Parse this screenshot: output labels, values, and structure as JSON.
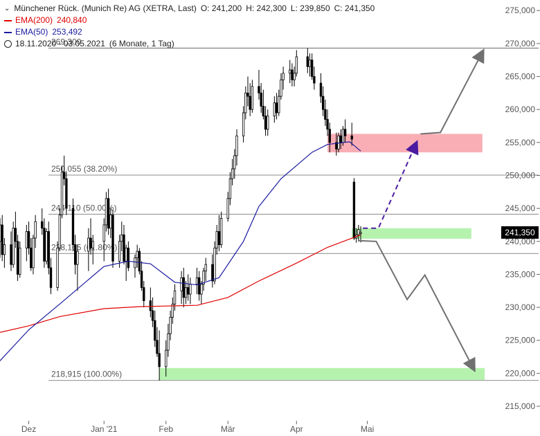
{
  "header": {
    "title_line": "Münchener Rück. (Munich Re) AG (XETRA, Last)",
    "o": "O: 241,200",
    "h": "H: 242,300",
    "l": "L: 239,850",
    "c": "C: 241,350",
    "ema200_label": "EMA(200)",
    "ema200_value": "240,840",
    "ema50_label": "EMA(50)",
    "ema50_value": "253,492",
    "period": "18.11.2020 - 03.05.2021",
    "period_note": "(6 Monate, 1 Tag)"
  },
  "colors": {
    "ema200": "#e00000",
    "ema50": "#1a1aa0",
    "resistance_zone": "#f8a0a8",
    "support_zone": "#a8f0a0",
    "dashed_path": "#4a1aa0",
    "scenario_path": "#707070",
    "price_tag_bg": "#000000"
  },
  "chart_data": {
    "type": "candlestick",
    "x_axis": {
      "ticks": [
        "Dez",
        "Jan '21",
        "Feb",
        "Mär",
        "Apr",
        "Mai"
      ],
      "tick_dates": [
        "2020-12-01",
        "2021-01-04",
        "2021-02-01",
        "2021-03-01",
        "2021-04-01",
        "2021-05-03"
      ],
      "range": [
        "2020-11-18",
        "2021-06-25"
      ]
    },
    "y_axis": {
      "ticks": [
        215000,
        220000,
        225000,
        230000,
        235000,
        240000,
        245000,
        250000,
        255000,
        260000,
        265000,
        270000,
        275000
      ],
      "tick_labels": [
        "215,000",
        "220,000",
        "225,000",
        "230,000",
        "235,000",
        "240,000",
        "245,000",
        "250,000",
        "255,000",
        "260,000",
        "265,000",
        "270,000",
        "275,000"
      ],
      "range": [
        212800,
        276600
      ],
      "position": "right"
    },
    "last_price": 241350,
    "last_price_label": "241,350",
    "fib_levels": [
      {
        "value": 269300,
        "label": "269,300"
      },
      {
        "value": 250055,
        "label": "250,055 (38.20%)"
      },
      {
        "value": 244110,
        "label": "244,110 (50.00%)"
      },
      {
        "value": 238165,
        "label": "238,165 (61.80%)"
      },
      {
        "value": 218915,
        "label": "218,915 (100.00%)"
      }
    ],
    "zones": [
      {
        "name": "resistance",
        "from": 253500,
        "to": 256300,
        "start": "2021-04-15",
        "end": "2021-06-24"
      },
      {
        "name": "support",
        "from": 240400,
        "to": 242000,
        "start": "2021-04-26",
        "end": "2021-06-19"
      },
      {
        "name": "target",
        "from": 219000,
        "to": 220800,
        "start": "2021-01-29",
        "end": "2021-06-25"
      }
    ],
    "series": [
      {
        "name": "EMA(200)",
        "points": [
          [
            "2020-11-18",
            226200
          ],
          [
            "2020-12-01",
            227200
          ],
          [
            "2020-12-15",
            228600
          ],
          [
            "2021-01-04",
            229800
          ],
          [
            "2021-01-20",
            230100
          ],
          [
            "2021-02-01",
            230200
          ],
          [
            "2021-02-15",
            230300
          ],
          [
            "2021-03-01",
            231500
          ],
          [
            "2021-03-15",
            234000
          ],
          [
            "2021-04-01",
            236700
          ],
          [
            "2021-04-15",
            239100
          ],
          [
            "2021-04-30",
            241000
          ]
        ]
      },
      {
        "name": "EMA(50)",
        "points": [
          [
            "2020-11-18",
            221900
          ],
          [
            "2020-12-01",
            226600
          ],
          [
            "2020-12-15",
            230500
          ],
          [
            "2021-01-04",
            236200
          ],
          [
            "2021-01-15",
            237000
          ],
          [
            "2021-01-25",
            236600
          ],
          [
            "2021-02-05",
            233800
          ],
          [
            "2021-02-15",
            233400
          ],
          [
            "2021-02-25",
            234500
          ],
          [
            "2021-03-08",
            240000
          ],
          [
            "2021-03-15",
            245300
          ],
          [
            "2021-03-25",
            249500
          ],
          [
            "2021-04-08",
            253500
          ],
          [
            "2021-04-15",
            254700
          ],
          [
            "2021-04-25",
            255100
          ],
          [
            "2021-04-30",
            253700
          ]
        ]
      }
    ],
    "ohlc": [
      [
        "2020-11-18",
        240000,
        243500,
        237500,
        242500
      ],
      [
        "2020-11-19",
        242500,
        244000,
        237000,
        238000
      ],
      [
        "2020-11-20",
        238000,
        240500,
        236000,
        239500
      ],
      [
        "2020-11-23",
        239500,
        241500,
        235500,
        236500
      ],
      [
        "2020-11-24",
        236500,
        243000,
        236000,
        242000
      ],
      [
        "2020-11-25",
        242000,
        244500,
        239000,
        240000
      ],
      [
        "2020-11-26",
        240000,
        241000,
        234000,
        235000
      ],
      [
        "2020-11-27",
        235000,
        240000,
        234500,
        239000
      ],
      [
        "2020-11-30",
        239000,
        242500,
        237000,
        241500
      ],
      [
        "2020-12-01",
        241500,
        243000,
        238000,
        239000
      ],
      [
        "2020-12-02",
        239000,
        240500,
        235500,
        236000
      ],
      [
        "2020-12-03",
        236000,
        241000,
        235000,
        240500
      ],
      [
        "2020-12-04",
        240500,
        244000,
        239000,
        243000
      ],
      [
        "2020-12-07",
        243000,
        245000,
        241000,
        242000
      ],
      [
        "2020-12-08",
        242000,
        243500,
        236000,
        237000
      ],
      [
        "2020-12-09",
        237000,
        242000,
        236500,
        241500
      ],
      [
        "2020-12-10",
        241500,
        243000,
        235000,
        236000
      ],
      [
        "2020-12-11",
        236000,
        237500,
        232000,
        233000
      ],
      [
        "2020-12-14",
        233000,
        240000,
        232500,
        239000
      ],
      [
        "2020-12-15",
        239000,
        245000,
        238500,
        244000
      ],
      [
        "2020-12-16",
        244000,
        251500,
        243500,
        250500
      ],
      [
        "2020-12-17",
        250500,
        253000,
        248500,
        249500
      ],
      [
        "2020-12-18",
        249500,
        250500,
        244000,
        245000
      ],
      [
        "2020-12-21",
        245000,
        246500,
        238500,
        239500
      ],
      [
        "2020-12-22",
        239500,
        241000,
        235000,
        236500
      ],
      [
        "2020-12-23",
        236500,
        239500,
        232500,
        238500
      ],
      [
        "2020-12-28",
        238500,
        242000,
        235500,
        240500
      ],
      [
        "2020-12-29",
        240500,
        243500,
        238000,
        239000
      ],
      [
        "2020-12-30",
        239000,
        241000,
        236500,
        240000
      ],
      [
        "2021-01-04",
        240000,
        243500,
        237000,
        242500
      ],
      [
        "2021-01-05",
        242500,
        247500,
        241500,
        246500
      ],
      [
        "2021-01-06",
        246500,
        248000,
        241000,
        242000
      ],
      [
        "2021-01-07",
        242000,
        245000,
        240500,
        244000
      ],
      [
        "2021-01-08",
        244000,
        244800,
        236000,
        237000
      ],
      [
        "2021-01-11",
        237000,
        241000,
        236000,
        240000
      ],
      [
        "2021-01-12",
        240000,
        243000,
        238500,
        241000
      ],
      [
        "2021-01-13",
        241000,
        242500,
        236500,
        237000
      ],
      [
        "2021-01-14",
        237000,
        239500,
        234000,
        239000
      ],
      [
        "2021-01-15",
        239000,
        240000,
        235500,
        236000
      ],
      [
        "2021-01-18",
        236000,
        238000,
        234500,
        237500
      ],
      [
        "2021-01-19",
        237500,
        239500,
        236000,
        238500
      ],
      [
        "2021-01-20",
        238500,
        239000,
        235000,
        235500
      ],
      [
        "2021-01-21",
        235500,
        237000,
        232500,
        233000
      ],
      [
        "2021-01-22",
        233000,
        234000,
        230000,
        231000
      ],
      [
        "2021-01-25",
        231000,
        233000,
        228500,
        229500
      ],
      [
        "2021-01-26",
        229500,
        231500,
        227000,
        228000
      ],
      [
        "2021-01-27",
        228000,
        229500,
        224000,
        225000
      ],
      [
        "2021-01-28",
        225000,
        227000,
        222500,
        223000
      ],
      [
        "2021-01-29",
        223000,
        226500,
        218900,
        221000
      ],
      [
        "2021-02-01",
        221000,
        225000,
        219500,
        223500
      ],
      [
        "2021-02-02",
        223500,
        227500,
        222500,
        226000
      ],
      [
        "2021-02-03",
        226000,
        229500,
        225000,
        228500
      ],
      [
        "2021-02-04",
        228500,
        231500,
        227500,
        230500
      ],
      [
        "2021-02-05",
        230500,
        233500,
        229500,
        232500
      ],
      [
        "2021-02-08",
        232500,
        235500,
        230500,
        234500
      ],
      [
        "2021-02-09",
        234500,
        236000,
        230000,
        231500
      ],
      [
        "2021-02-10",
        231500,
        234000,
        230500,
        233000
      ],
      [
        "2021-02-11",
        233000,
        235000,
        231000,
        232000
      ],
      [
        "2021-02-12",
        232000,
        234500,
        230500,
        233500
      ],
      [
        "2021-02-15",
        233500,
        236000,
        232000,
        234500
      ],
      [
        "2021-02-16",
        234500,
        235500,
        231000,
        232000
      ],
      [
        "2021-02-17",
        232000,
        234000,
        230500,
        233500
      ],
      [
        "2021-02-18",
        233500,
        236000,
        232500,
        235500
      ],
      [
        "2021-02-19",
        235500,
        237500,
        234000,
        236500
      ],
      [
        "2021-02-22",
        236500,
        238000,
        233000,
        234000
      ],
      [
        "2021-02-23",
        234000,
        240000,
        233500,
        239000
      ],
      [
        "2021-02-24",
        239000,
        242500,
        238000,
        241500
      ],
      [
        "2021-02-25",
        241500,
        244000,
        238500,
        239500
      ],
      [
        "2021-02-26",
        239500,
        244500,
        239000,
        243500
      ],
      [
        "2021-03-01",
        243500,
        247500,
        243000,
        246500
      ],
      [
        "2021-03-02",
        246500,
        250500,
        245500,
        249500
      ],
      [
        "2021-03-03",
        249500,
        252500,
        248500,
        251000
      ],
      [
        "2021-03-04",
        251000,
        254000,
        249500,
        253000
      ],
      [
        "2021-03-05",
        253000,
        257000,
        251500,
        256000
      ],
      [
        "2021-03-08",
        256000,
        260500,
        255000,
        259500
      ],
      [
        "2021-03-09",
        259500,
        263500,
        258500,
        262500
      ],
      [
        "2021-03-10",
        262500,
        265000,
        260500,
        262000
      ],
      [
        "2021-03-11",
        262000,
        264000,
        259000,
        260000
      ],
      [
        "2021-03-12",
        260000,
        264500,
        259500,
        263500
      ],
      [
        "2021-03-15",
        263500,
        266000,
        261500,
        262500
      ],
      [
        "2021-03-16",
        262500,
        264000,
        259500,
        260500
      ],
      [
        "2021-03-17",
        260500,
        263000,
        258500,
        259000
      ],
      [
        "2021-03-18",
        259000,
        260500,
        256000,
        257000
      ],
      [
        "2021-03-19",
        257000,
        260000,
        256000,
        259000
      ],
      [
        "2021-03-22",
        259000,
        262000,
        258000,
        261000
      ],
      [
        "2021-03-23",
        261000,
        262500,
        258500,
        259500
      ],
      [
        "2021-03-24",
        259500,
        263000,
        259000,
        262000
      ],
      [
        "2021-03-25",
        262000,
        265500,
        261500,
        264500
      ],
      [
        "2021-03-26",
        264500,
        266500,
        263000,
        265500
      ],
      [
        "2021-03-29",
        265500,
        267500,
        264000,
        266000
      ],
      [
        "2021-03-30",
        266000,
        267000,
        263500,
        264500
      ],
      [
        "2021-03-31",
        264500,
        266500,
        263500,
        265500
      ],
      [
        "2021-04-01",
        265500,
        269000,
        265000,
        268000
      ],
      [
        "2021-04-06",
        268000,
        269300,
        265500,
        266500
      ],
      [
        "2021-04-07",
        266500,
        268500,
        265000,
        267500
      ],
      [
        "2021-04-08",
        267500,
        268500,
        264500,
        265000
      ],
      [
        "2021-04-09",
        265000,
        266500,
        263000,
        264000
      ],
      [
        "2021-04-12",
        264000,
        265500,
        261000,
        262000
      ],
      [
        "2021-04-13",
        262000,
        263500,
        259000,
        260000
      ],
      [
        "2021-04-14",
        260000,
        261500,
        257500,
        258500
      ],
      [
        "2021-04-15",
        258500,
        260000,
        256000,
        257000
      ],
      [
        "2021-04-16",
        257000,
        258000,
        253500,
        255000
      ],
      [
        "2021-04-19",
        255000,
        256500,
        253000,
        254000
      ],
      [
        "2021-04-20",
        254000,
        256500,
        253500,
        256000
      ],
      [
        "2021-04-21",
        256000,
        257000,
        254000,
        255000
      ],
      [
        "2021-04-22",
        255000,
        257500,
        254500,
        257000
      ],
      [
        "2021-04-23",
        257000,
        258500,
        255000,
        256000
      ],
      [
        "2021-04-26",
        256000,
        258000,
        254500,
        255500
      ],
      [
        "2021-04-27",
        249000,
        249600,
        240200,
        240500
      ],
      [
        "2021-04-28",
        240500,
        242000,
        239800,
        241000
      ],
      [
        "2021-04-29",
        241000,
        242500,
        240000,
        241800
      ],
      [
        "2021-04-30",
        241200,
        242300,
        239850,
        241350
      ]
    ],
    "annotations": [
      {
        "name": "dashed-up",
        "style": "dashed",
        "points": [
          [
            "2021-05-01",
            242000
          ],
          [
            "2021-05-08",
            242000
          ],
          [
            "2021-05-25",
            254800
          ]
        ]
      },
      {
        "name": "scenario-up",
        "style": "solid",
        "points": [
          [
            "2021-05-27",
            256300
          ],
          [
            "2021-06-05",
            256500
          ],
          [
            "2021-06-24",
            268700
          ]
        ]
      },
      {
        "name": "scenario-down",
        "style": "solid",
        "points": [
          [
            "2021-04-29",
            240100
          ],
          [
            "2021-05-07",
            240000
          ],
          [
            "2021-05-21",
            231200
          ],
          [
            "2021-05-29",
            234900
          ],
          [
            "2021-06-20",
            220700
          ]
        ]
      }
    ]
  }
}
